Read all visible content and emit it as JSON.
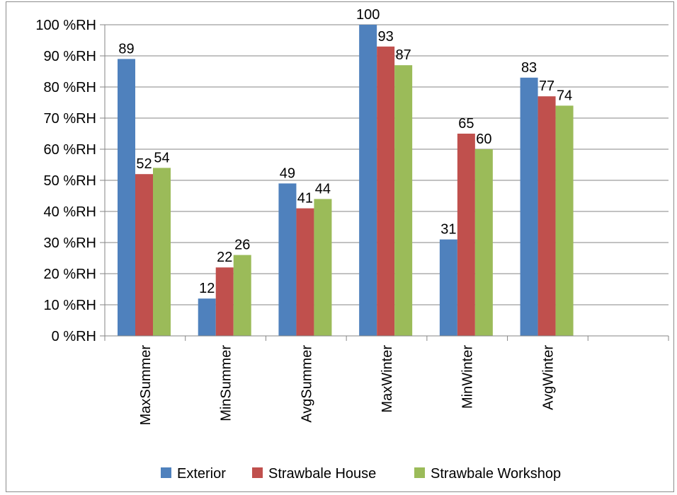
{
  "chart_data": {
    "type": "bar",
    "title": "",
    "xlabel": "",
    "ylabel": "",
    "ylim": [
      0,
      100
    ],
    "y_ticks": [
      0,
      10,
      20,
      30,
      40,
      50,
      60,
      70,
      80,
      90,
      100
    ],
    "y_tick_labels": [
      "0 %RH",
      "10 %RH",
      "20 %RH",
      "30 %RH",
      "40 %RH",
      "50 %RH",
      "60 %RH",
      "70 %RH",
      "80 %RH",
      "90 %RH",
      "100 %RH"
    ],
    "grid": true,
    "legend_position": "bottom",
    "categories": [
      "MaxSummer",
      "MinSummer",
      "AvgSummer",
      "MaxWinter",
      "MinWinter",
      "AvgWinter",
      ""
    ],
    "series": [
      {
        "name": "Exterior",
        "color": "#4f81bd",
        "values": [
          89,
          12,
          49,
          100,
          31,
          83,
          null
        ]
      },
      {
        "name": "Strawbale House",
        "color": "#c0504d",
        "values": [
          52,
          22,
          41,
          93,
          65,
          77,
          null
        ]
      },
      {
        "name": "Strawbale Workshop",
        "color": "#9bbb59",
        "values": [
          54,
          26,
          44,
          87,
          60,
          74,
          null
        ]
      }
    ]
  }
}
